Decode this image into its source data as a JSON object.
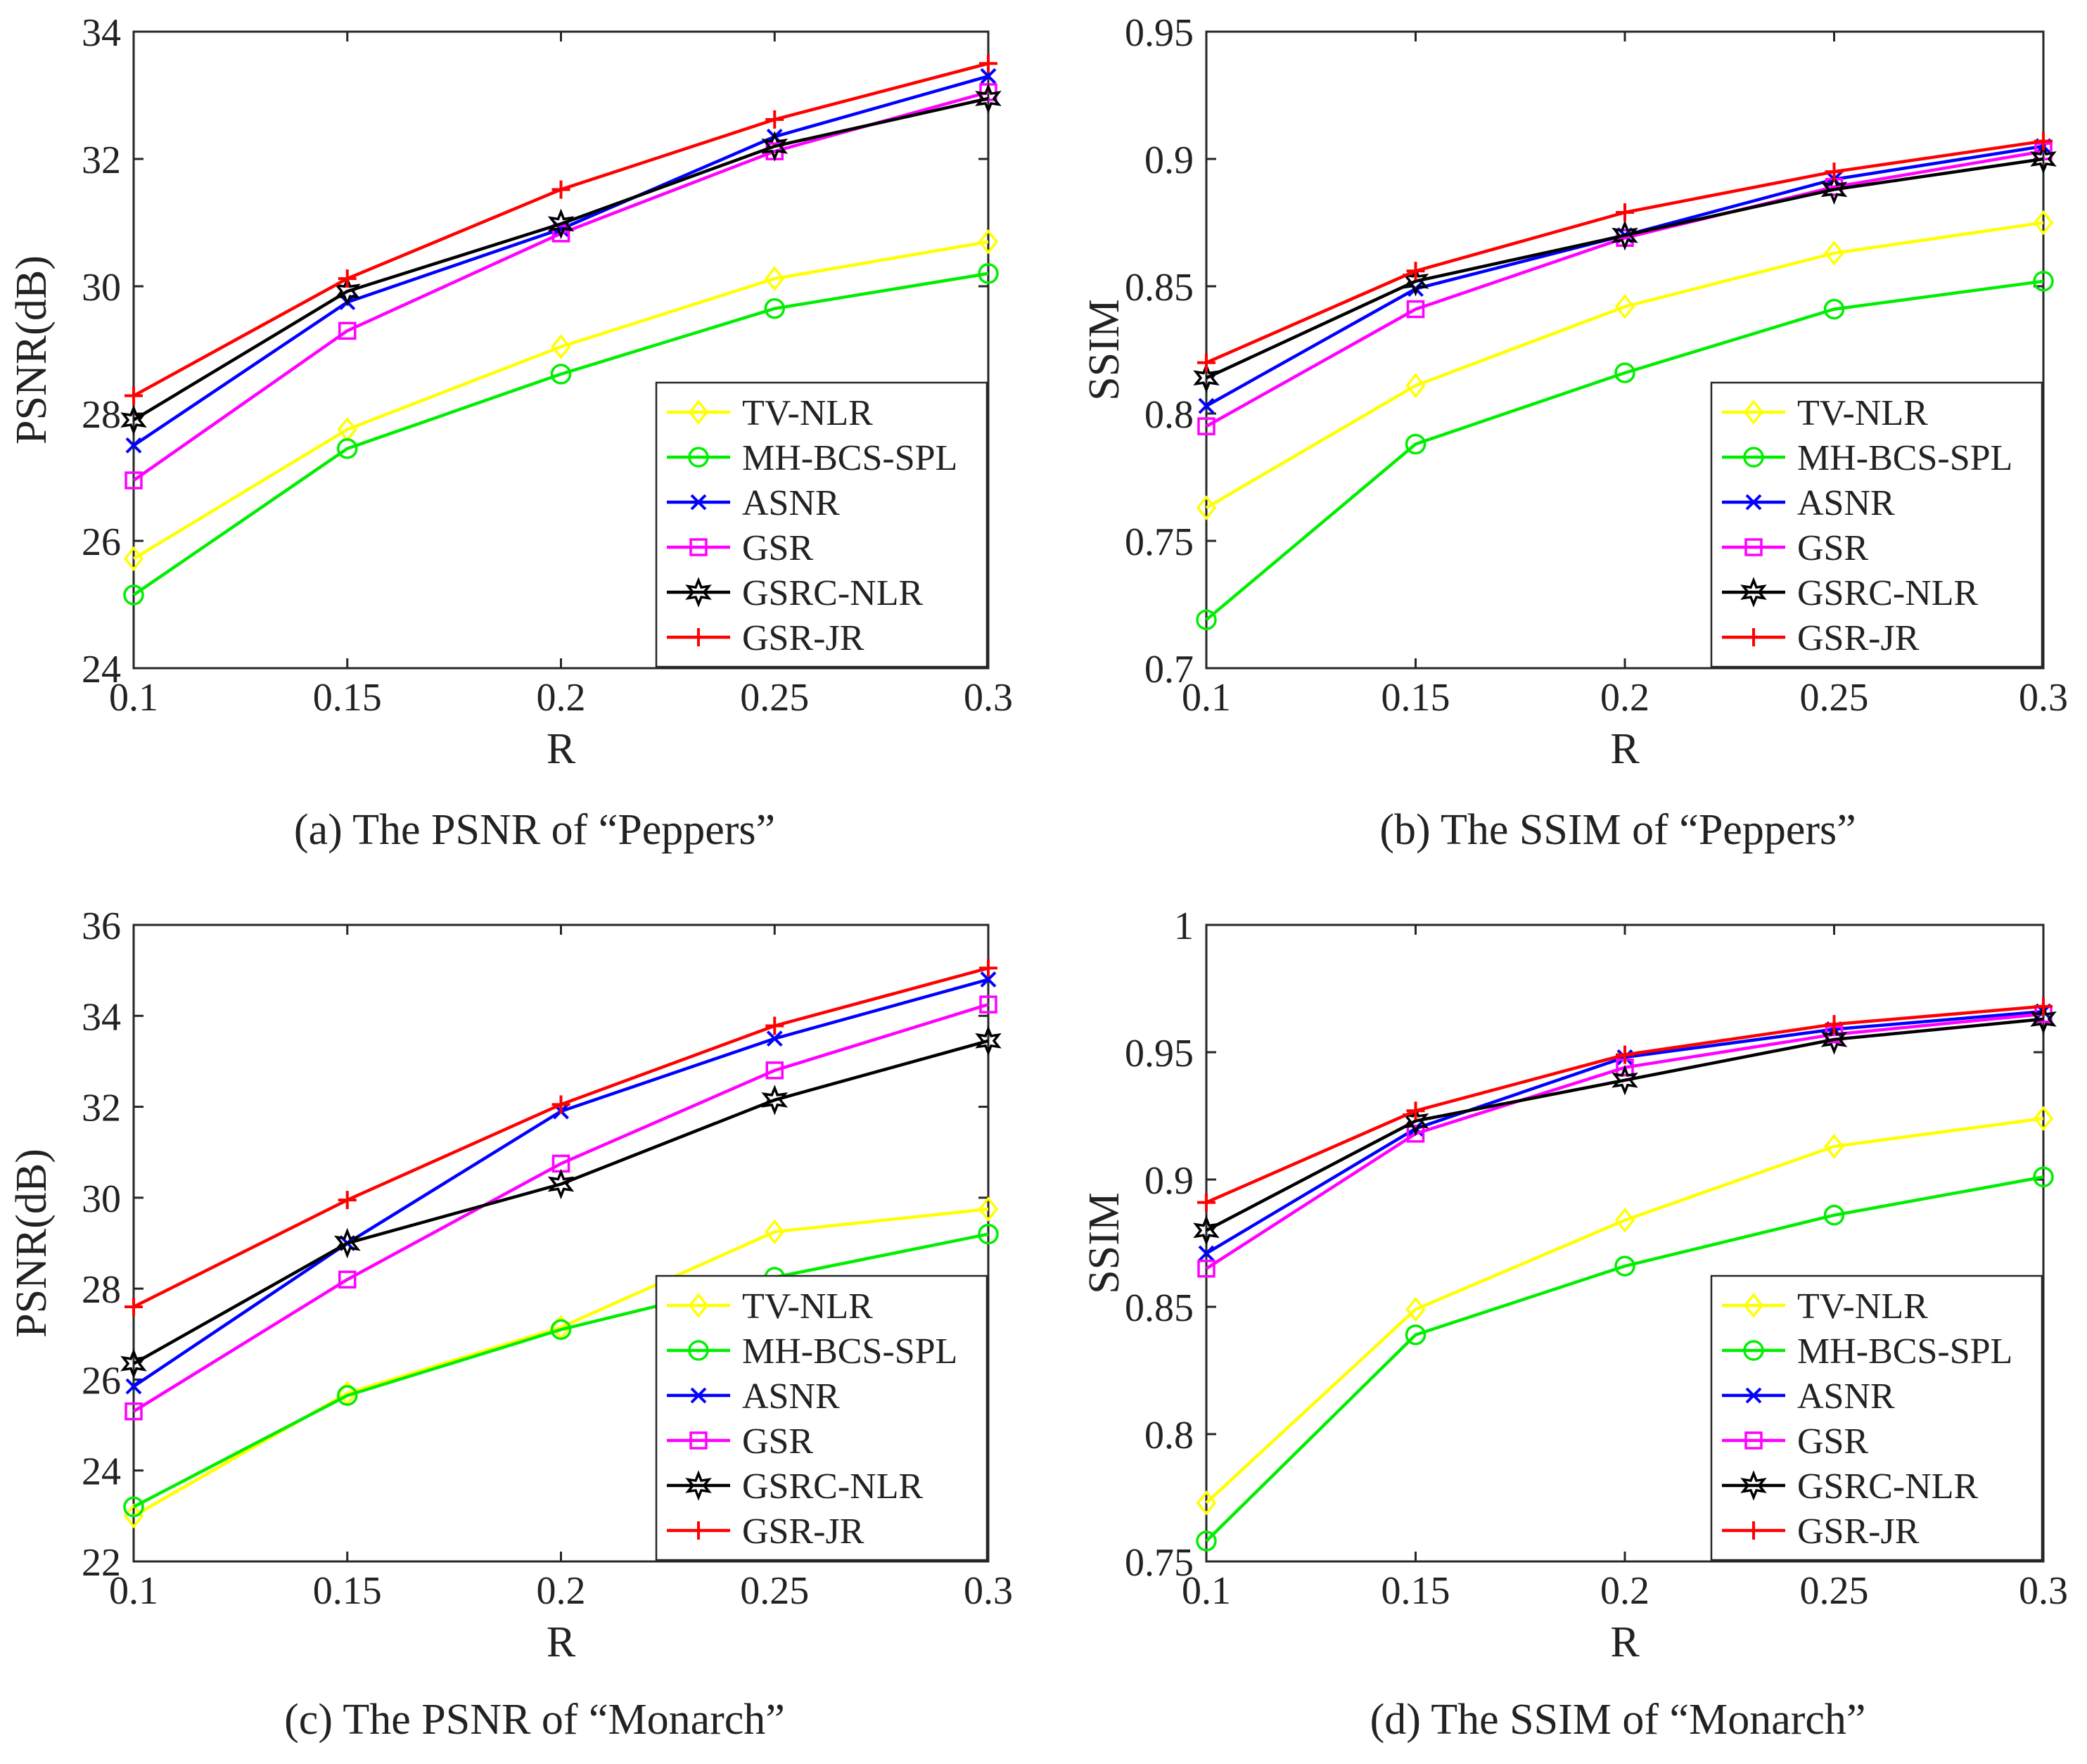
{
  "figure": {
    "colors": {
      "TV-NLR": "#ffff00",
      "MH-BCS-SPL": "#00ee00",
      "ASNR": "#0000ff",
      "GSR": "#ff00ff",
      "GSRC-NLR": "#000000",
      "GSR-JR": "#ff0000"
    }
  },
  "chart_data": [
    {
      "type": "line",
      "caption": "(a) The PSNR of “Peppers”",
      "xlabel": "R",
      "ylabel": "PSNR(dB)",
      "x": [
        0.1,
        0.15,
        0.2,
        0.25,
        0.3
      ],
      "xticks": [
        "0.1",
        "0.15",
        "0.2",
        "0.25",
        "0.3"
      ],
      "yticks": [
        "24",
        "26",
        "28",
        "30",
        "32",
        "34"
      ],
      "ylim": [
        24,
        34
      ],
      "legend_position": "bottom-right",
      "series": [
        {
          "name": "TV-NLR",
          "marker": "diamond",
          "values": [
            25.72,
            27.75,
            29.05,
            30.12,
            30.7
          ]
        },
        {
          "name": "MH-BCS-SPL",
          "marker": "circle",
          "values": [
            25.15,
            27.45,
            28.62,
            29.65,
            30.2
          ]
        },
        {
          "name": "ASNR",
          "marker": "x",
          "values": [
            27.5,
            29.75,
            30.9,
            32.35,
            33.3
          ]
        },
        {
          "name": "GSR",
          "marker": "square",
          "values": [
            26.95,
            29.3,
            30.83,
            32.12,
            33.05
          ]
        },
        {
          "name": "GSRC-NLR",
          "marker": "star",
          "values": [
            27.9,
            29.92,
            30.98,
            32.2,
            32.95
          ]
        },
        {
          "name": "GSR-JR",
          "marker": "plus",
          "values": [
            28.28,
            30.12,
            31.52,
            32.62,
            33.5
          ]
        }
      ]
    },
    {
      "type": "line",
      "caption": "(b)  The SSIM of “Peppers”",
      "xlabel": "R",
      "ylabel": "SSIM",
      "x": [
        0.1,
        0.15,
        0.2,
        0.25,
        0.3
      ],
      "xticks": [
        "0.1",
        "0.15",
        "0.2",
        "0.25",
        "0.3"
      ],
      "yticks": [
        "0.7",
        "0.75",
        "0.8",
        "0.85",
        "0.9",
        "0.95"
      ],
      "ylim": [
        0.7,
        0.95
      ],
      "legend_position": "bottom-right",
      "series": [
        {
          "name": "TV-NLR",
          "marker": "diamond",
          "values": [
            0.763,
            0.811,
            0.842,
            0.863,
            0.875
          ]
        },
        {
          "name": "MH-BCS-SPL",
          "marker": "circle",
          "values": [
            0.719,
            0.788,
            0.816,
            0.841,
            0.852
          ]
        },
        {
          "name": "ASNR",
          "marker": "x",
          "values": [
            0.803,
            0.849,
            0.87,
            0.892,
            0.905
          ]
        },
        {
          "name": "GSR",
          "marker": "square",
          "values": [
            0.795,
            0.841,
            0.869,
            0.889,
            0.903
          ]
        },
        {
          "name": "GSRC-NLR",
          "marker": "star",
          "values": [
            0.814,
            0.852,
            0.87,
            0.888,
            0.9
          ]
        },
        {
          "name": "GSR-JR",
          "marker": "plus",
          "values": [
            0.82,
            0.856,
            0.879,
            0.895,
            0.907
          ]
        }
      ]
    },
    {
      "type": "line",
      "caption": "(c) The PSNR of “Monarch”",
      "xlabel": "R",
      "ylabel": "PSNR(dB)",
      "x": [
        0.1,
        0.15,
        0.2,
        0.25,
        0.3
      ],
      "xticks": [
        "0.1",
        "0.15",
        "0.2",
        "0.25",
        "0.3"
      ],
      "yticks": [
        "22",
        "24",
        "26",
        "28",
        "30",
        "32",
        "34",
        "36"
      ],
      "ylim": [
        22,
        36
      ],
      "legend_position": "bottom-right",
      "series": [
        {
          "name": "TV-NLR",
          "marker": "diamond",
          "values": [
            23.0,
            25.7,
            27.15,
            29.25,
            29.75
          ]
        },
        {
          "name": "MH-BCS-SPL",
          "marker": "circle",
          "values": [
            23.2,
            25.65,
            27.1,
            28.25,
            29.2
          ]
        },
        {
          "name": "ASNR",
          "marker": "x",
          "values": [
            25.85,
            29.0,
            31.9,
            33.5,
            34.8
          ]
        },
        {
          "name": "GSR",
          "marker": "square",
          "values": [
            25.3,
            28.2,
            30.75,
            32.8,
            34.25
          ]
        },
        {
          "name": "GSRC-NLR",
          "marker": "star",
          "values": [
            26.35,
            29.0,
            30.3,
            32.15,
            33.45
          ]
        },
        {
          "name": "GSR-JR",
          "marker": "plus",
          "values": [
            27.6,
            29.95,
            32.05,
            33.78,
            35.05
          ]
        }
      ]
    },
    {
      "type": "line",
      "caption": "(d) The SSIM of “Monarch”",
      "xlabel": "R",
      "ylabel": "SSIM",
      "x": [
        0.1,
        0.15,
        0.2,
        0.25,
        0.3
      ],
      "xticks": [
        "0.1",
        "0.15",
        "0.2",
        "0.25",
        "0.3"
      ],
      "yticks": [
        "0.75",
        "0.8",
        "0.85",
        "0.9",
        "0.95",
        "1"
      ],
      "ylim": [
        0.75,
        1.0
      ],
      "legend_position": "bottom-right",
      "series": [
        {
          "name": "TV-NLR",
          "marker": "diamond",
          "values": [
            0.773,
            0.849,
            0.884,
            0.913,
            0.924
          ]
        },
        {
          "name": "MH-BCS-SPL",
          "marker": "circle",
          "values": [
            0.758,
            0.839,
            0.866,
            0.886,
            0.901
          ]
        },
        {
          "name": "ASNR",
          "marker": "x",
          "values": [
            0.871,
            0.92,
            0.948,
            0.959,
            0.966
          ]
        },
        {
          "name": "GSR",
          "marker": "square",
          "values": [
            0.865,
            0.918,
            0.944,
            0.957,
            0.965
          ]
        },
        {
          "name": "GSRC-NLR",
          "marker": "star",
          "values": [
            0.88,
            0.923,
            0.939,
            0.955,
            0.963
          ]
        },
        {
          "name": "GSR-JR",
          "marker": "plus",
          "values": [
            0.891,
            0.927,
            0.949,
            0.961,
            0.968
          ]
        }
      ]
    }
  ]
}
